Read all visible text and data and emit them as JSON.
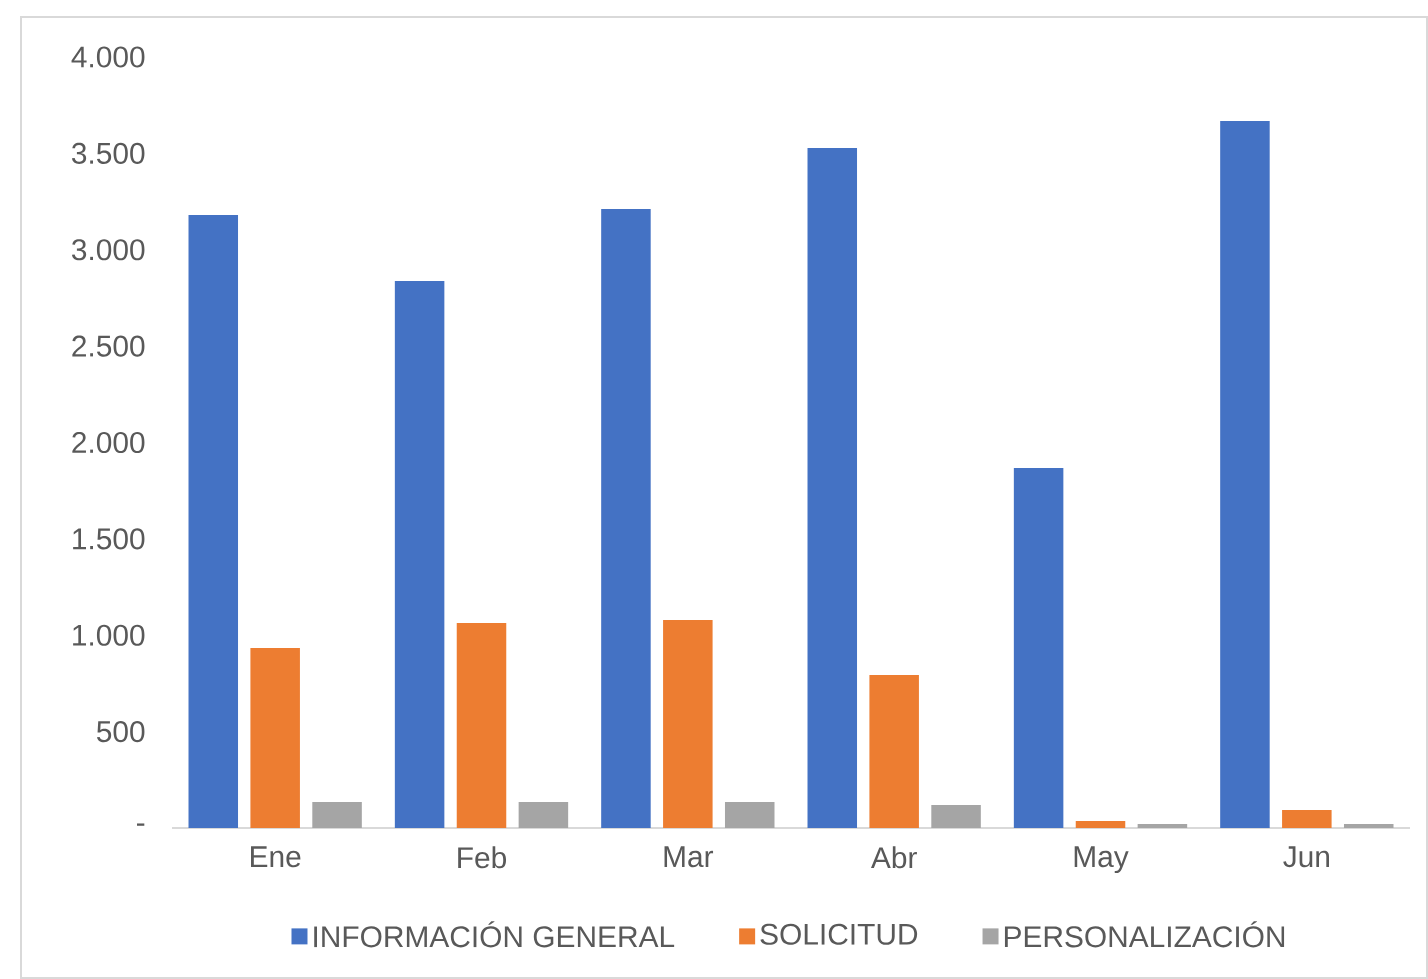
{
  "chart_data": {
    "type": "bar",
    "categories": [
      "Ene",
      "Feb",
      "Mar",
      "Abr",
      "May",
      "Jun"
    ],
    "series": [
      {
        "name": "INFORMACIÓN GENERAL",
        "color": "#4472c4",
        "values": [
          3180,
          2838,
          3211,
          3528,
          1868,
          3668
        ]
      },
      {
        "name": "SOLICITUD",
        "color": "#ed7d31",
        "values": [
          934,
          1064,
          1079,
          794,
          36,
          93
        ]
      },
      {
        "name": "PERSONALIZACIÓN",
        "color": "#a5a5a5",
        "values": [
          135,
          135,
          135,
          119,
          21,
          21
        ]
      }
    ],
    "ylim": [
      0,
      4000
    ],
    "yticks": [
      {
        "value": 0,
        "label": "-"
      },
      {
        "value": 500,
        "label": "500"
      },
      {
        "value": 1000,
        "label": "1.000"
      },
      {
        "value": 1500,
        "label": "1.500"
      },
      {
        "value": 2000,
        "label": "2.000"
      },
      {
        "value": 2500,
        "label": "2.500"
      },
      {
        "value": 3000,
        "label": "3.000"
      },
      {
        "value": 3500,
        "label": "3.500"
      },
      {
        "value": 4000,
        "label": "4.000"
      }
    ],
    "grid": false,
    "legend": "bottom"
  }
}
